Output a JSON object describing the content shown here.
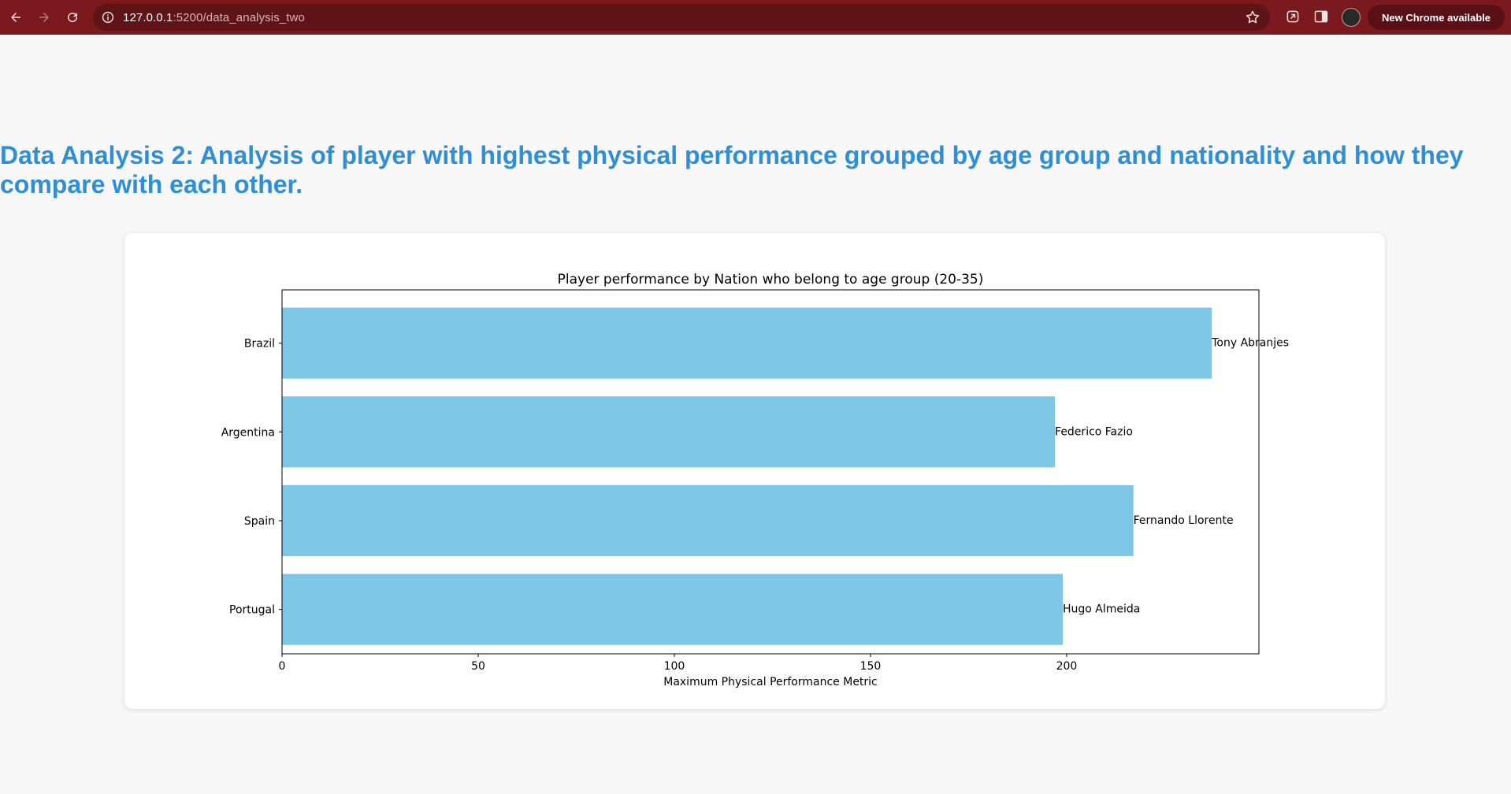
{
  "browser": {
    "url_host": "127.0.0.1",
    "url_path": ":5200/data_analysis_two",
    "update_label": "New Chrome available"
  },
  "page": {
    "title": "Data Analysis 2: Analysis of player with highest physical performance grouped by age group and nationality and how they compare with each other."
  },
  "colors": {
    "toolbar": "#7a1a1e",
    "title": "#2f8fd6",
    "bar": "#7ec6e6"
  },
  "chart_data": {
    "type": "bar",
    "orientation": "horizontal",
    "title": "Player performance by Nation who belong to age group (20-35)",
    "xlabel": "Maximum Physical Performance Metric",
    "ylabel": "",
    "xlim": [
      0,
      249
    ],
    "xticks": [
      0,
      50,
      100,
      150,
      200
    ],
    "categories": [
      "Brazil",
      "Argentina",
      "Spain",
      "Portugal"
    ],
    "values": [
      237,
      197,
      217,
      199
    ],
    "bar_labels": [
      "Tony Abranjes",
      "Federico Fazio",
      "Fernando Llorente",
      "Hugo Almeida"
    ],
    "grid": false
  }
}
